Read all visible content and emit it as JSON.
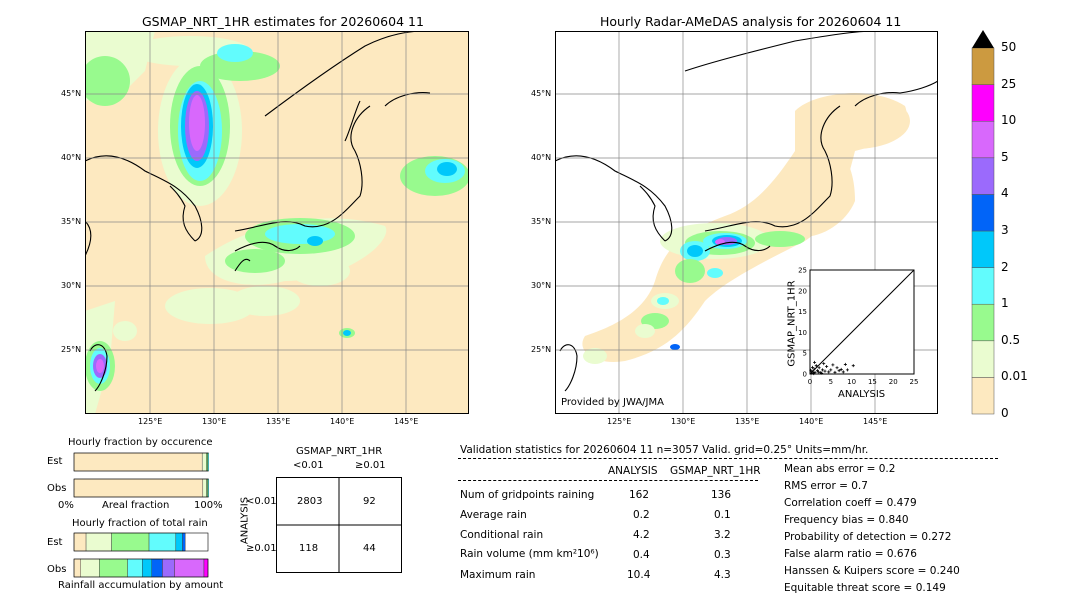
{
  "left_map": {
    "title": "GSMAP_NRT_1HR estimates for 20260604 11",
    "lat_ticks": [
      "45°N",
      "40°N",
      "35°N",
      "30°N",
      "25°N"
    ],
    "lon_ticks": [
      "125°E",
      "130°E",
      "135°E",
      "140°E",
      "145°E"
    ]
  },
  "right_map": {
    "title": "Hourly Radar-AMeDAS analysis for 20260604 11",
    "lat_ticks": [
      "45°N",
      "40°N",
      "35°N",
      "30°N",
      "25°N"
    ],
    "lon_ticks": [
      "125°E",
      "130°E",
      "135°E",
      "140°E",
      "145°E"
    ],
    "credit": "Provided by JWA/JMA"
  },
  "colorbar": {
    "labels": [
      "50",
      "25",
      "10",
      "5",
      "4",
      "3",
      "2",
      "1",
      "0.5",
      "0.01",
      "0"
    ],
    "colors": [
      "#fde9c0",
      "#eafcd0",
      "#98fa8e",
      "#62fcfd",
      "#00c8fa",
      "#0164f8",
      "#9b6afc",
      "#d868fc",
      "#fe00fe",
      "#cc9a40"
    ],
    "extend_color": "#000000"
  },
  "scatter_inset": {
    "ylabel": "GSMAP_NRT_1HR",
    "xlabel": "ANALYSIS",
    "ticks": [
      "0",
      "5",
      "10",
      "15",
      "20",
      "25"
    ]
  },
  "occurrence_panel": {
    "title": "Hourly fraction by occurence",
    "row_labels": [
      "Est",
      "Obs"
    ],
    "axis_left": "0%",
    "axis_mid": "Areal fraction",
    "axis_right": "100%"
  },
  "total_rain_panel": {
    "title": "Hourly fraction of total rain",
    "row_labels": [
      "Est",
      "Obs"
    ],
    "axis_label": "Rainfall accumulation by amount"
  },
  "contingency": {
    "col_title": "GSMAP_NRT_1HR",
    "col_labels": [
      "<0.01",
      "≥0.01"
    ],
    "row_title": "ANALYSIS",
    "row_labels": [
      "<0.01",
      "≥0.01"
    ],
    "cells": [
      [
        "2803",
        "92"
      ],
      [
        "118",
        "44"
      ]
    ]
  },
  "validation": {
    "header": "Validation statistics for 20260604 11  n=3057 Valid. grid=0.25° Units=mm/hr.",
    "col_analysis": "ANALYSIS",
    "col_gsmap": "GSMAP_NRT_1HR",
    "rows": [
      {
        "label": "Num of gridpoints raining",
        "analysis": "162",
        "gsmap": "136"
      },
      {
        "label": "Average rain",
        "analysis": "0.2",
        "gsmap": "0.1"
      },
      {
        "label": "Conditional rain",
        "analysis": "4.2",
        "gsmap": "3.2"
      },
      {
        "label": "Rain volume (mm km²10⁶)",
        "analysis": "0.4",
        "gsmap": "0.3"
      },
      {
        "label": "Maximum rain",
        "analysis": "10.4",
        "gsmap": "4.3"
      }
    ],
    "scores": [
      "Mean abs error =    0.2",
      "RMS error =    0.7",
      "Correlation coeff =  0.479",
      "Frequency bias =  0.840",
      "Probability of detection =  0.272",
      "False alarm ratio =  0.676",
      "Hanssen & Kuipers score =  0.240",
      "Equitable threat score =  0.149"
    ]
  },
  "chart_data": [
    {
      "type": "heatmap",
      "title": "GSMAP_NRT_1HR estimates for 20260604 11",
      "xlabel": "",
      "ylabel": "",
      "x_ticks": [
        "125°E",
        "130°E",
        "135°E",
        "140°E",
        "145°E"
      ],
      "y_ticks": [
        "45°N",
        "40°N",
        "35°N",
        "30°N",
        "25°N"
      ]
    },
    {
      "type": "heatmap",
      "title": "Hourly Radar-AMeDAS analysis for 20260604 11",
      "xlabel": "",
      "ylabel": "",
      "x_ticks": [
        "125°E",
        "130°E",
        "135°E",
        "140°E",
        "145°E"
      ],
      "y_ticks": [
        "45°N",
        "40°N",
        "35°N",
        "30°N",
        "25°N"
      ]
    },
    {
      "type": "scatter",
      "xlabel": "ANALYSIS",
      "ylabel": "GSMAP_NRT_1HR",
      "xlim": [
        0,
        25
      ],
      "ylim": [
        0,
        25
      ],
      "points": [
        [
          0.3,
          0.2
        ],
        [
          0.5,
          0.6
        ],
        [
          0.8,
          0.3
        ],
        [
          1.0,
          1.2
        ],
        [
          1.2,
          0.4
        ],
        [
          1.5,
          2.0
        ],
        [
          1.8,
          0.8
        ],
        [
          2.0,
          0.5
        ],
        [
          2.2,
          1.5
        ],
        [
          2.5,
          0.3
        ],
        [
          3.0,
          1.0
        ],
        [
          3.3,
          2.5
        ],
        [
          3.6,
          0.7
        ],
        [
          4.0,
          1.8
        ],
        [
          4.5,
          0.5
        ],
        [
          5.0,
          1.0
        ],
        [
          5.5,
          2.2
        ],
        [
          6.0,
          0.4
        ],
        [
          6.5,
          1.5
        ],
        [
          7.0,
          0.8
        ],
        [
          7.5,
          1.1
        ],
        [
          8.0,
          0.5
        ],
        [
          8.5,
          2.3
        ],
        [
          9.0,
          1.0
        ],
        [
          10.4,
          2.0
        ],
        [
          0.2,
          0.9
        ],
        [
          0.6,
          1.6
        ],
        [
          1.1,
          2.8
        ],
        [
          0.9,
          0.1
        ],
        [
          2.8,
          0.2
        ]
      ]
    },
    {
      "type": "bar",
      "title": "Hourly fraction by occurence",
      "categories": [
        "Est",
        "Obs"
      ],
      "series": [
        {
          "values": [
            0.9565,
            0.9614
          ]
        },
        {
          "values": [
            0.0302,
            0.0275
          ]
        },
        {
          "values": [
            0.0072,
            0.0036
          ]
        },
        {
          "values": [
            0.0036,
            0.0026
          ]
        },
        {
          "values": [
            0.0016,
            0.0013
          ]
        },
        {
          "values": [
            0.0009,
            0.0012
          ]
        },
        {
          "values": [
            0.0,
            0.001
          ]
        },
        {
          "values": [
            0.0,
            0.0008
          ]
        },
        {
          "values": [
            0.0,
            0.0006
          ]
        }
      ]
    },
    {
      "type": "bar",
      "title": "Hourly fraction of total rain",
      "categories": [
        "Est",
        "Obs"
      ],
      "series": [
        {
          "values": [
            0.09,
            0.05
          ]
        },
        {
          "values": [
            0.19,
            0.14
          ]
        },
        {
          "values": [
            0.28,
            0.21
          ]
        },
        {
          "values": [
            0.2,
            0.11
          ]
        },
        {
          "values": [
            0.05,
            0.07
          ]
        },
        {
          "values": [
            0.02,
            0.08
          ]
        },
        {
          "values": [
            0.0,
            0.09
          ]
        },
        {
          "values": [
            0.0,
            0.22
          ]
        },
        {
          "values": [
            0.0,
            0.03
          ]
        }
      ]
    }
  ]
}
